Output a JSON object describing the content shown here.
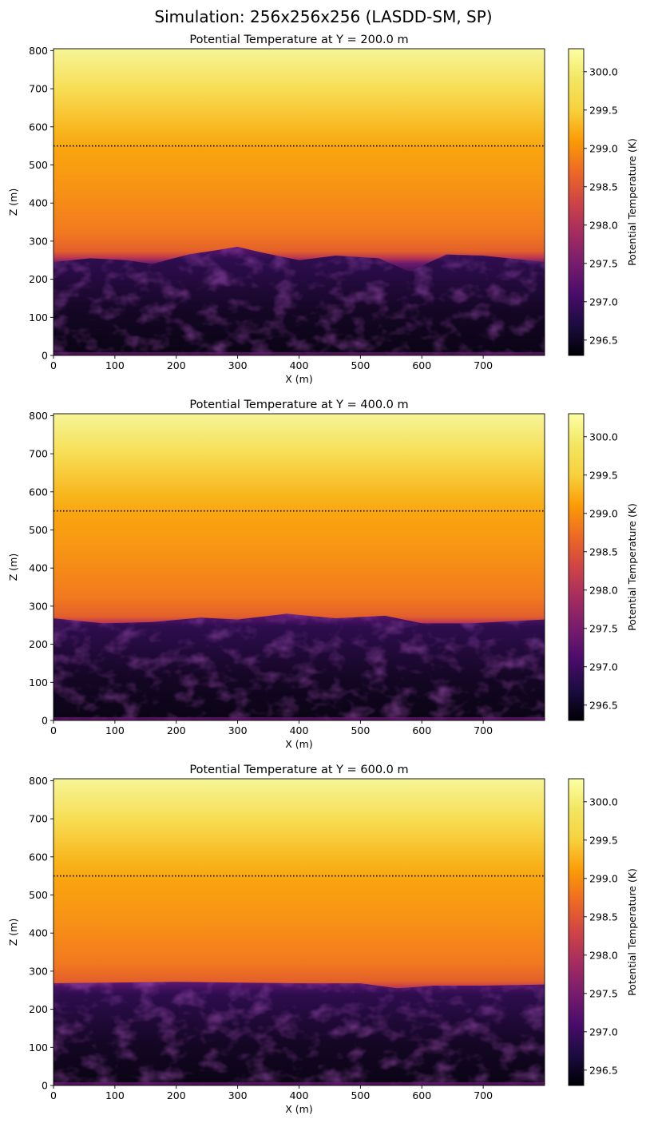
{
  "chart_data": {
    "suptitle": "Simulation: 256x256x256 (LASDD-SM, SP)",
    "type": "heatmap",
    "colormap": "inferno",
    "panels": [
      {
        "title": "Potential Temperature at Y = 200.0 m",
        "xlabel": "X (m)",
        "ylabel": "Z (m)",
        "xlim": [
          0,
          800
        ],
        "ylim": [
          0,
          805
        ],
        "xticks": [
          "0",
          "100",
          "200",
          "300",
          "400",
          "500",
          "600",
          "700"
        ],
        "yticks": [
          "0",
          "100",
          "200",
          "300",
          "400",
          "500",
          "600",
          "700",
          "800"
        ],
        "dotted_line_z": 550,
        "mixed_layer_top": [
          [
            0,
            245
          ],
          [
            60,
            255
          ],
          [
            120,
            250
          ],
          [
            160,
            240
          ],
          [
            220,
            265
          ],
          [
            300,
            285
          ],
          [
            340,
            270
          ],
          [
            400,
            250
          ],
          [
            460,
            262
          ],
          [
            530,
            255
          ],
          [
            580,
            220
          ],
          [
            640,
            265
          ],
          [
            700,
            262
          ],
          [
            800,
            245
          ]
        ],
        "colorbar": {
          "label": "Potential Temperature (K)",
          "ticks": [
            "296.5",
            "297.0",
            "297.5",
            "298.0",
            "298.5",
            "299.0",
            "299.5",
            "300.0"
          ],
          "vmin": 296.3,
          "vmax": 300.3
        }
      },
      {
        "title": "Potential Temperature at Y = 400.0 m",
        "xlabel": "X (m)",
        "ylabel": "Z (m)",
        "xlim": [
          0,
          800
        ],
        "ylim": [
          0,
          805
        ],
        "xticks": [
          "0",
          "100",
          "200",
          "300",
          "400",
          "500",
          "600",
          "700"
        ],
        "yticks": [
          "0",
          "100",
          "200",
          "300",
          "400",
          "500",
          "600",
          "700",
          "800"
        ],
        "dotted_line_z": 550,
        "mixed_layer_top": [
          [
            0,
            268
          ],
          [
            80,
            255
          ],
          [
            160,
            258
          ],
          [
            240,
            270
          ],
          [
            300,
            265
          ],
          [
            380,
            280
          ],
          [
            460,
            268
          ],
          [
            540,
            275
          ],
          [
            600,
            255
          ],
          [
            680,
            255
          ],
          [
            800,
            265
          ]
        ],
        "colorbar": {
          "label": "Potential Temperature (K)",
          "ticks": [
            "296.5",
            "297.0",
            "297.5",
            "298.0",
            "298.5",
            "299.0",
            "299.5",
            "300.0"
          ],
          "vmin": 296.3,
          "vmax": 300.3
        }
      },
      {
        "title": "Potential Temperature at Y = 600.0 m",
        "xlabel": "X (m)",
        "ylabel": "Z (m)",
        "xlim": [
          0,
          800
        ],
        "ylim": [
          0,
          805
        ],
        "xticks": [
          "0",
          "100",
          "200",
          "300",
          "400",
          "500",
          "600",
          "700"
        ],
        "yticks": [
          "0",
          "100",
          "200",
          "300",
          "400",
          "500",
          "600",
          "700",
          "800"
        ],
        "dotted_line_z": 550,
        "mixed_layer_top": [
          [
            0,
            268
          ],
          [
            100,
            270
          ],
          [
            200,
            272
          ],
          [
            300,
            270
          ],
          [
            400,
            268
          ],
          [
            500,
            268
          ],
          [
            560,
            255
          ],
          [
            620,
            262
          ],
          [
            700,
            262
          ],
          [
            800,
            265
          ]
        ],
        "colorbar": {
          "label": "Potential Temperature (K)",
          "ticks": [
            "296.5",
            "297.0",
            "297.5",
            "298.0",
            "298.5",
            "299.0",
            "299.5",
            "300.0"
          ],
          "vmin": 296.3,
          "vmax": 300.3
        }
      }
    ]
  }
}
